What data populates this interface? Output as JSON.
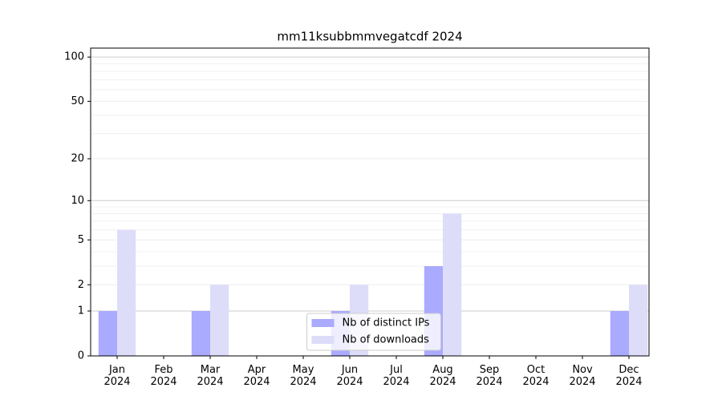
{
  "chart_data": {
    "type": "bar",
    "title": "mm11ksubbmmvegatcdf 2024",
    "categories": [
      "Jan 2024",
      "Feb 2024",
      "Mar 2024",
      "Apr 2024",
      "May 2024",
      "Jun 2024",
      "Jul 2024",
      "Aug 2024",
      "Sep 2024",
      "Oct 2024",
      "Nov 2024",
      "Dec 2024"
    ],
    "series": [
      {
        "name": "Nb of distinct IPs",
        "color": "#aaaaff",
        "values": [
          1,
          0,
          1,
          0,
          0,
          1,
          0,
          3,
          0,
          0,
          0,
          1
        ]
      },
      {
        "name": "Nb of downloads",
        "color": "#ddddfa",
        "values": [
          6,
          0,
          2,
          0,
          0,
          2,
          0,
          8,
          0,
          0,
          0,
          2
        ]
      }
    ],
    "yscale": "log1p",
    "ylim": [
      0,
      115
    ],
    "yticks": [
      0,
      1,
      2,
      5,
      10,
      20,
      50,
      100
    ],
    "yminor": [
      3,
      4,
      6,
      7,
      8,
      9,
      30,
      40,
      60,
      70,
      80,
      90
    ],
    "grid": true,
    "legend": "lower center"
  }
}
